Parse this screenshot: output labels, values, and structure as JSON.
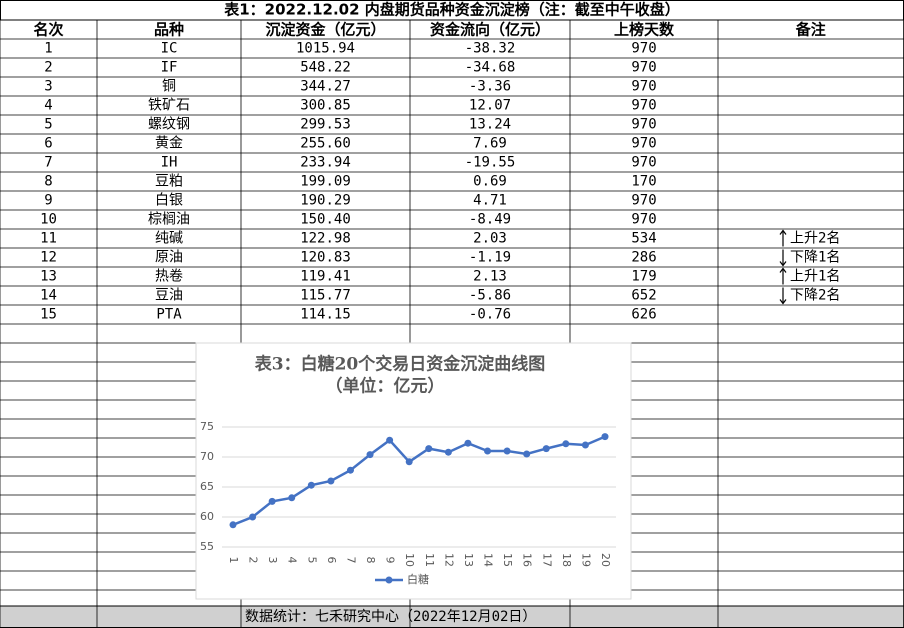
{
  "header": {
    "title": "表1：2022.12.02 内盘期货品种资金沉淀榜（注：截至中午收盘）"
  },
  "table": {
    "columns": [
      "名次",
      "品种",
      "沉淀资金（亿元）",
      "资金流向（亿元）",
      "上榜天数",
      "备注"
    ],
    "rows": [
      [
        "1",
        "IC",
        "1015.94",
        "-38.32",
        "970",
        ""
      ],
      [
        "2",
        "IF",
        "548.22",
        "-34.68",
        "970",
        ""
      ],
      [
        "3",
        "铜",
        "344.27",
        "-3.36",
        "970",
        ""
      ],
      [
        "4",
        "铁矿石",
        "300.85",
        "12.07",
        "970",
        ""
      ],
      [
        "5",
        "螺纹钢",
        "299.53",
        "13.24",
        "970",
        ""
      ],
      [
        "6",
        "黄金",
        "255.60",
        "7.69",
        "970",
        ""
      ],
      [
        "7",
        "IH",
        "233.94",
        "-19.55",
        "970",
        ""
      ],
      [
        "8",
        "豆粕",
        "199.09",
        "0.69",
        "170",
        ""
      ],
      [
        "9",
        "白银",
        "190.29",
        "4.71",
        "970",
        ""
      ],
      [
        "10",
        "棕榈油",
        "150.40",
        "-8.49",
        "970",
        ""
      ],
      [
        "11",
        "纯碱",
        "122.98",
        "2.03",
        "534",
        "上升2名"
      ],
      [
        "12",
        "原油",
        "120.83",
        "-1.19",
        "286",
        "下降1名"
      ],
      [
        "13",
        "热卷",
        "119.41",
        "2.13",
        "179",
        "上升1名"
      ],
      [
        "14",
        "豆油",
        "115.77",
        "-5.86",
        "652",
        "下降2名"
      ],
      [
        "15",
        "PTA",
        "114.15",
        "-0.76",
        "626",
        ""
      ]
    ]
  },
  "footer": {
    "text": "数据统计：七禾研究中心（2022年12月02日）"
  },
  "chart_data": {
    "type": "line",
    "title": "表3：白糖20个交易日资金沉淀曲线图",
    "subtitle": "（单位：亿元）",
    "categories": [
      "1",
      "2",
      "3",
      "4",
      "5",
      "6",
      "7",
      "8",
      "9",
      "10",
      "11",
      "12",
      "13",
      "14",
      "15",
      "16",
      "17",
      "18",
      "19",
      "20"
    ],
    "series": [
      {
        "name": "白糖",
        "color": "#4472c4",
        "values": [
          58.7,
          60.0,
          62.6,
          63.2,
          65.3,
          66.0,
          67.8,
          70.4,
          72.8,
          69.2,
          71.4,
          70.8,
          72.3,
          71.0,
          71.0,
          70.5,
          71.4,
          72.2,
          72.0,
          73.4
        ]
      }
    ],
    "ylim": [
      55,
      75
    ],
    "yticks": [
      55,
      60,
      65,
      70,
      75
    ],
    "grid": true,
    "legend": "bottom"
  }
}
